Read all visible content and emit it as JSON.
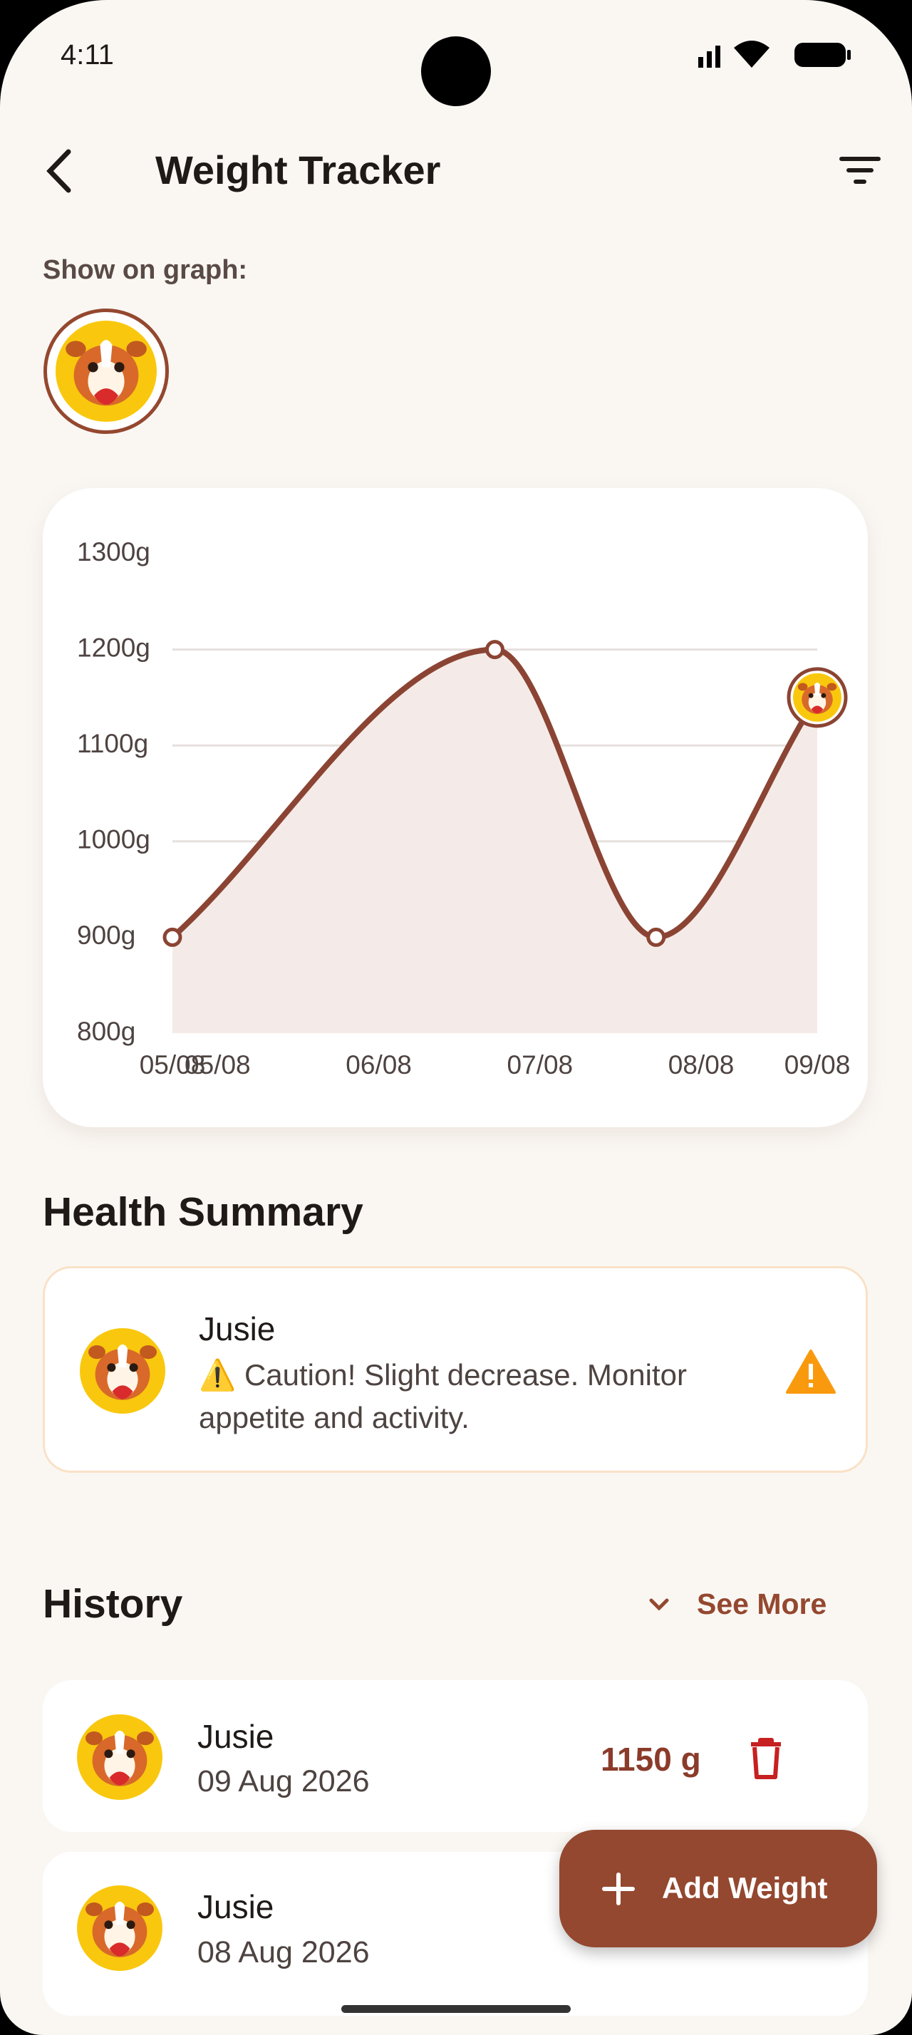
{
  "status_bar": {
    "time": "4:11"
  },
  "header": {
    "title": "Weight Tracker"
  },
  "graph_filter": {
    "label": "Show on graph:"
  },
  "chart_data": {
    "type": "line",
    "x": [
      "05/08",
      "07/08",
      "08/08",
      "09/08"
    ],
    "values": [
      900,
      1200,
      900,
      1150
    ],
    "color": "#8b4433",
    "fill": "#f4ebe8",
    "ylim": [
      800,
      1300
    ],
    "yticks": [
      {
        "value": 800,
        "label": "800g"
      },
      {
        "value": 900,
        "label": "900g"
      },
      {
        "value": 1000,
        "label": "1000g"
      },
      {
        "value": 1100,
        "label": "1100g"
      },
      {
        "value": 1200,
        "label": "1200g"
      },
      {
        "value": 1300,
        "label": "1300g"
      }
    ],
    "xticks": [
      "05/08",
      "05/08",
      "06/08",
      "07/08",
      "08/08",
      "09/08"
    ],
    "grid": true
  },
  "health_summary": {
    "title": "Health Summary",
    "name": "Jusie",
    "message": "⚠️ Caution! Slight decrease. Monitor appetite and activity."
  },
  "history": {
    "title": "History",
    "see_more": "See More",
    "items": [
      {
        "name": "Jusie",
        "date": "09 Aug 2026",
        "weight": "1150 g"
      },
      {
        "name": "Jusie",
        "date": "08 Aug 2026"
      }
    ]
  },
  "fab": {
    "label": "Add Weight"
  }
}
